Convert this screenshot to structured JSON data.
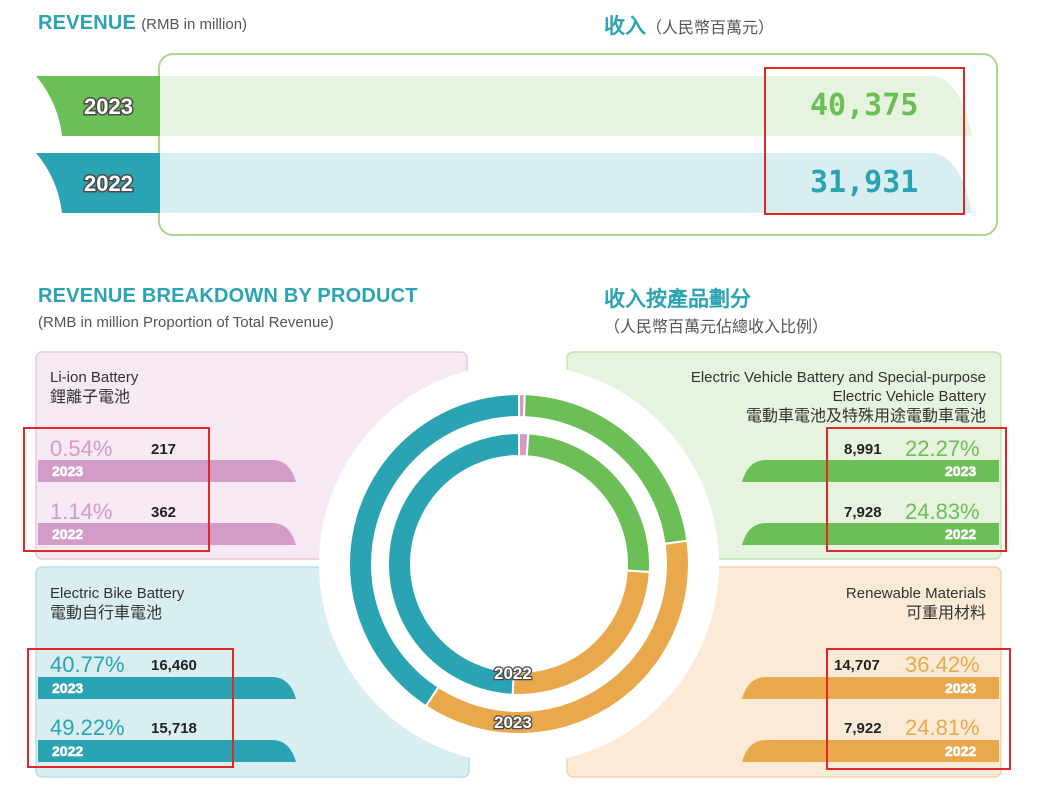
{
  "revenue": {
    "title_en": "REVENUE",
    "subtitle_en": "(RMB in million)",
    "title_zh": "收入",
    "subtitle_zh": "（人民幣百萬元）",
    "rows": [
      {
        "year": "2023",
        "value": "40,375",
        "color": "#6cbf56",
        "bg": "#e6f3df"
      },
      {
        "year": "2022",
        "value": "31,931",
        "color": "#2aa3b3",
        "bg": "#d8eef1"
      }
    ]
  },
  "breakdown": {
    "title_en": "REVENUE BREAKDOWN BY PRODUCT",
    "subtitle_en": "(RMB in million Proportion of Total Revenue)",
    "title_zh": "收入按產品劃分",
    "subtitle_zh": "（人民幣百萬元佔總收入比例）"
  },
  "chart_data": {
    "type": "pie",
    "rings": [
      {
        "name": "2023",
        "values": [
          0.54,
          22.27,
          36.42,
          40.77
        ]
      },
      {
        "name": "2022",
        "values": [
          1.14,
          24.83,
          24.81,
          49.22
        ]
      }
    ],
    "categories": [
      "Li-ion Battery",
      "Electric Vehicle Battery and Special-purpose Electric Vehicle Battery",
      "Renewable Materials",
      "Electric Bike Battery"
    ],
    "colors": [
      "#d39bc8",
      "#6cbf56",
      "#e9a84c",
      "#2aa3b3"
    ],
    "ring_labels": {
      "inner": "2022",
      "outer": "2023"
    }
  },
  "panels": {
    "li_ion": {
      "name_en": "Li-ion Battery",
      "name_zh": "鋰離子電池",
      "color": "#d39bc8",
      "rows": [
        {
          "pct": "0.54%",
          "value": "217",
          "year": "2023"
        },
        {
          "pct": "1.14%",
          "value": "362",
          "year": "2022"
        }
      ]
    },
    "ebike": {
      "name_en": "Electric Bike Battery",
      "name_zh": "電動自行車電池",
      "color": "#2aa3b3",
      "rows": [
        {
          "pct": "40.77%",
          "value": "16,460",
          "year": "2023"
        },
        {
          "pct": "49.22%",
          "value": "15,718",
          "year": "2022"
        }
      ]
    },
    "ev": {
      "name_en_1": "Electric Vehicle Battery and Special-purpose",
      "name_en_2": "Electric Vehicle Battery",
      "name_zh": "電動車電池及特殊用途電動車電池",
      "color": "#6cbf56",
      "rows": [
        {
          "pct": "22.27%",
          "value": "8,991",
          "year": "2023"
        },
        {
          "pct": "24.83%",
          "value": "7,928",
          "year": "2022"
        }
      ]
    },
    "renewable": {
      "name_en": "Renewable Materials",
      "name_zh": "可重用材料",
      "color": "#e9a84c",
      "rows": [
        {
          "pct": "36.42%",
          "value": "14,707",
          "year": "2023"
        },
        {
          "pct": "24.81%",
          "value": "7,922",
          "year": "2022"
        }
      ]
    }
  }
}
